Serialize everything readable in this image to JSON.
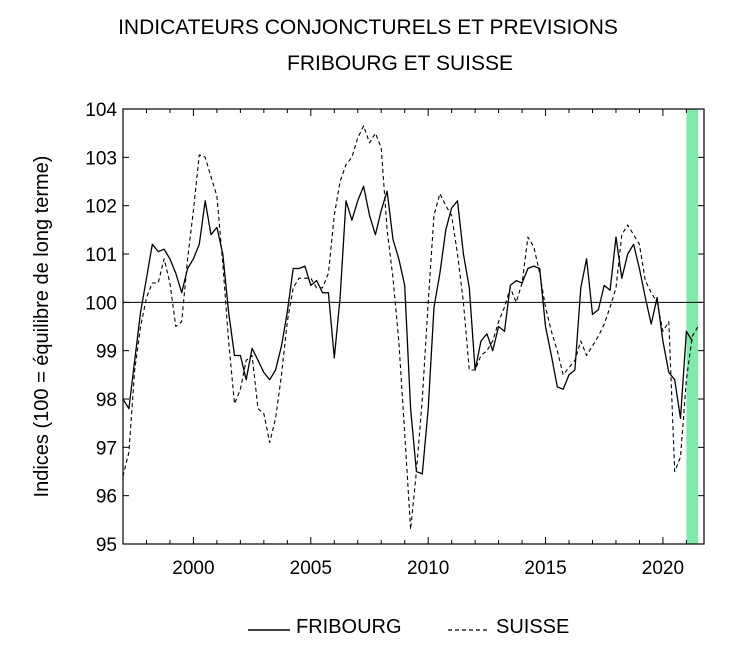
{
  "chart_data": {
    "type": "line",
    "title": "INDICATEURS CONJONCTURELS ET PREVISIONS",
    "subtitle": "FRIBOURG ET SUISSE",
    "xlabel": "",
    "ylabel": "Indices (100 = équilibre de long terme)",
    "xlim": [
      1997,
      2021.75
    ],
    "ylim": [
      95,
      104
    ],
    "xticks": [
      2000,
      2005,
      2010,
      2015,
      2020
    ],
    "yticks": [
      95,
      96,
      97,
      98,
      99,
      100,
      101,
      102,
      103,
      104
    ],
    "reference_line": 100,
    "forecast_band": [
      2021,
      2021.5
    ],
    "grid": false,
    "legend_position": "bottom",
    "series": [
      {
        "name": "FRIBOURG",
        "style": "solid",
        "x": [
          1997.0,
          1997.25,
          1997.5,
          1997.75,
          1998.0,
          1998.25,
          1998.5,
          1998.75,
          1999.0,
          1999.25,
          1999.5,
          1999.75,
          2000.0,
          2000.25,
          2000.5,
          2000.75,
          2001.0,
          2001.25,
          2001.5,
          2001.75,
          2002.0,
          2002.25,
          2002.5,
          2002.75,
          2003.0,
          2003.25,
          2003.5,
          2003.75,
          2004.0,
          2004.25,
          2004.5,
          2004.75,
          2005.0,
          2005.25,
          2005.5,
          2005.75,
          2006.0,
          2006.25,
          2006.5,
          2006.75,
          2007.0,
          2007.25,
          2007.5,
          2007.75,
          2008.0,
          2008.25,
          2008.5,
          2008.75,
          2009.0,
          2009.25,
          2009.5,
          2009.75,
          2010.0,
          2010.25,
          2010.5,
          2010.75,
          2011.0,
          2011.25,
          2011.5,
          2011.75,
          2012.0,
          2012.25,
          2012.5,
          2012.75,
          2013.0,
          2013.25,
          2013.5,
          2013.75,
          2014.0,
          2014.25,
          2014.5,
          2014.75,
          2015.0,
          2015.25,
          2015.5,
          2015.75,
          2016.0,
          2016.25,
          2016.5,
          2016.75,
          2017.0,
          2017.25,
          2017.5,
          2017.75,
          2018.0,
          2018.25,
          2018.5,
          2018.75,
          2019.0,
          2019.25,
          2019.5,
          2019.75,
          2020.0,
          2020.25,
          2020.5,
          2020.75,
          2021.0,
          2021.25
        ],
        "values": [
          98.0,
          97.8,
          98.8,
          99.8,
          100.5,
          101.2,
          101.05,
          101.1,
          100.9,
          100.6,
          100.2,
          100.7,
          100.9,
          101.2,
          102.1,
          101.4,
          101.55,
          101.0,
          99.8,
          98.9,
          98.9,
          98.4,
          99.05,
          98.8,
          98.55,
          98.4,
          98.6,
          99.1,
          99.8,
          100.7,
          100.7,
          100.75,
          100.35,
          100.45,
          100.2,
          100.2,
          98.85,
          100.1,
          102.1,
          101.7,
          102.1,
          102.4,
          101.8,
          101.4,
          101.9,
          102.3,
          101.3,
          100.9,
          100.35,
          97.8,
          96.5,
          96.45,
          97.8,
          99.9,
          100.6,
          101.5,
          101.95,
          102.1,
          101.0,
          100.3,
          98.6,
          99.2,
          99.35,
          99.0,
          99.5,
          99.4,
          100.35,
          100.45,
          100.4,
          100.7,
          100.75,
          100.7,
          99.5,
          98.9,
          98.25,
          98.2,
          98.5,
          98.6,
          100.3,
          100.9,
          99.75,
          99.85,
          100.35,
          100.25,
          101.35,
          100.5,
          101.0,
          101.2,
          100.7,
          100.1,
          99.55,
          100.1,
          99.2,
          98.55,
          98.4,
          97.6,
          99.4,
          99.2
        ]
      },
      {
        "name": "SUISSE",
        "style": "dashed",
        "x": [
          1997.0,
          1997.25,
          1997.5,
          1997.75,
          1998.0,
          1998.25,
          1998.5,
          1998.75,
          1999.0,
          1999.25,
          1999.5,
          1999.75,
          2000.0,
          2000.25,
          2000.5,
          2000.75,
          2001.0,
          2001.25,
          2001.5,
          2001.75,
          2002.0,
          2002.25,
          2002.5,
          2002.75,
          2003.0,
          2003.25,
          2003.5,
          2003.75,
          2004.0,
          2004.25,
          2004.5,
          2004.75,
          2005.0,
          2005.25,
          2005.5,
          2005.75,
          2006.0,
          2006.25,
          2006.5,
          2006.75,
          2007.0,
          2007.25,
          2007.5,
          2007.75,
          2008.0,
          2008.25,
          2008.5,
          2008.75,
          2009.0,
          2009.25,
          2009.5,
          2009.75,
          2010.0,
          2010.25,
          2010.5,
          2010.75,
          2011.0,
          2011.25,
          2011.5,
          2011.75,
          2012.0,
          2012.25,
          2012.5,
          2012.75,
          2013.0,
          2013.25,
          2013.5,
          2013.75,
          2014.0,
          2014.25,
          2014.5,
          2014.75,
          2015.0,
          2015.25,
          2015.5,
          2015.75,
          2016.0,
          2016.25,
          2016.5,
          2016.75,
          2017.0,
          2017.25,
          2017.5,
          2017.75,
          2018.0,
          2018.25,
          2018.5,
          2018.75,
          2019.0,
          2019.25,
          2019.5,
          2019.75,
          2020.0,
          2020.25,
          2020.5,
          2020.75,
          2021.0,
          2021.25,
          2021.5
        ],
        "values": [
          96.4,
          96.9,
          98.6,
          99.5,
          100.1,
          100.4,
          100.4,
          100.9,
          100.4,
          99.5,
          99.6,
          100.9,
          101.9,
          103.05,
          103.0,
          102.6,
          102.2,
          100.8,
          99.2,
          97.9,
          98.2,
          98.8,
          98.9,
          97.8,
          97.7,
          97.1,
          97.6,
          98.5,
          99.6,
          100.3,
          100.5,
          100.5,
          100.5,
          100.3,
          100.3,
          100.6,
          101.8,
          102.5,
          102.85,
          103.0,
          103.4,
          103.65,
          103.3,
          103.5,
          103.2,
          101.5,
          100.5,
          99.2,
          97.3,
          95.3,
          96.5,
          98.0,
          100.0,
          101.8,
          102.25,
          102.0,
          101.8,
          101.0,
          100.0,
          98.6,
          98.6,
          98.9,
          99.0,
          99.2,
          99.6,
          99.9,
          100.3,
          100.0,
          100.4,
          101.35,
          101.15,
          100.6,
          99.9,
          99.4,
          99.0,
          98.5,
          98.65,
          98.8,
          99.2,
          98.9,
          99.1,
          99.3,
          99.55,
          99.9,
          100.3,
          101.4,
          101.6,
          101.4,
          101.2,
          100.45,
          100.2,
          100.0,
          99.4,
          99.6,
          96.5,
          96.8,
          98.4,
          99.3,
          99.5
        ]
      }
    ]
  }
}
